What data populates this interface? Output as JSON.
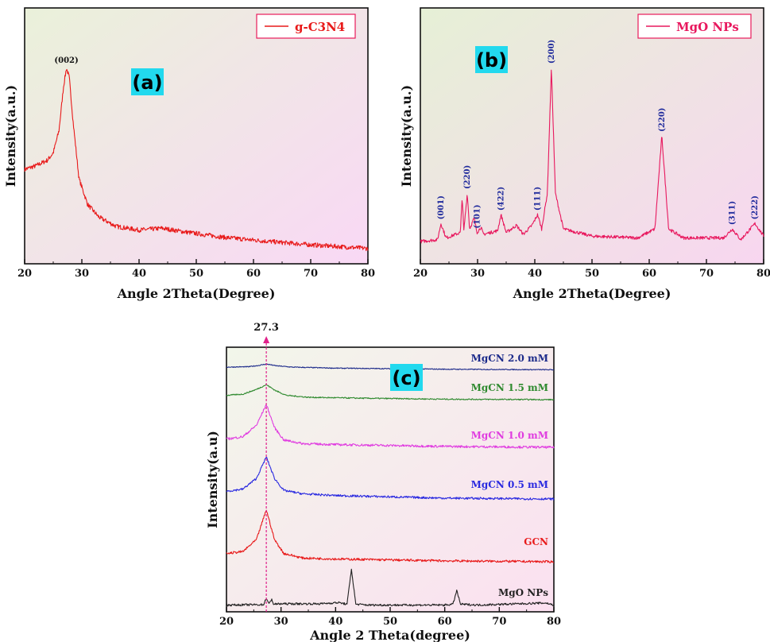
{
  "chart_data": [
    {
      "type": "line",
      "panel_label": "(a)",
      "xlabel": "Angle 2Theta(Degree)",
      "ylabel": "Intensity(a.u.)",
      "xlim": [
        20,
        80
      ],
      "xticks": [
        20,
        30,
        40,
        50,
        60,
        70,
        80
      ],
      "grid": false,
      "legend": "top-right",
      "series": [
        {
          "name": "g-C3N4",
          "color": "#e81a1a",
          "x": [
            20,
            22,
            24,
            25,
            26,
            26.8,
            27.3,
            27.8,
            28.5,
            29.5,
            31,
            33,
            36,
            40,
            44,
            48,
            55,
            62,
            70,
            80
          ],
          "y": [
            0.45,
            0.47,
            0.5,
            0.54,
            0.66,
            0.9,
            1.0,
            0.95,
            0.7,
            0.4,
            0.26,
            0.19,
            0.14,
            0.12,
            0.13,
            0.11,
            0.08,
            0.06,
            0.04,
            0.02
          ]
        }
      ],
      "peaks": [
        {
          "x": 27.3,
          "label": "(002)"
        }
      ]
    },
    {
      "type": "line",
      "panel_label": "(b)",
      "xlabel": "Angle 2Theta(Degree)",
      "ylabel": "Intensity(a.u.)",
      "xlim": [
        20,
        80
      ],
      "xticks": [
        20,
        30,
        40,
        50,
        60,
        70,
        80
      ],
      "grid": false,
      "legend": "top-right",
      "series": [
        {
          "name": "MgO NPs",
          "color": "#e8185e",
          "x": [
            20,
            23,
            23.6,
            24.5,
            27,
            27.3,
            27.6,
            28.2,
            28.6,
            29.4,
            29.9,
            30.6,
            31,
            33.5,
            34.1,
            35,
            36.8,
            38,
            39.5,
            40.5,
            41.2,
            42.2,
            42.9,
            43.6,
            45,
            50,
            58,
            61,
            62.2,
            63.4,
            66,
            73,
            74.5,
            76,
            78.5,
            80
          ],
          "y": [
            0.03,
            0.04,
            0.13,
            0.05,
            0.08,
            0.28,
            0.09,
            0.3,
            0.1,
            0.16,
            0.08,
            0.11,
            0.07,
            0.09,
            0.18,
            0.08,
            0.12,
            0.07,
            0.12,
            0.18,
            0.1,
            0.3,
            1.0,
            0.3,
            0.1,
            0.06,
            0.05,
            0.1,
            0.62,
            0.1,
            0.05,
            0.05,
            0.1,
            0.04,
            0.13,
            0.06
          ]
        }
      ],
      "peaks": [
        {
          "x": 23.6,
          "label": "(001)"
        },
        {
          "x": 28.2,
          "label": "(220)"
        },
        {
          "x": 29.9,
          "label": "(101)"
        },
        {
          "x": 34.1,
          "label": "(422)"
        },
        {
          "x": 40.5,
          "label": "(111)"
        },
        {
          "x": 42.9,
          "label": "(200)"
        },
        {
          "x": 62.2,
          "label": "(220)"
        },
        {
          "x": 74.5,
          "label": "(311)"
        },
        {
          "x": 78.5,
          "label": "(222)"
        }
      ]
    },
    {
      "type": "line",
      "panel_label": "(c)",
      "xlabel": "Angle 2 Theta(degree)",
      "ylabel": "Intensity(a.u)",
      "xlim": [
        20,
        80
      ],
      "xticks": [
        20,
        30,
        40,
        50,
        60,
        70,
        80
      ],
      "grid": false,
      "marker_line": {
        "x": 27.3,
        "label": "27.3"
      },
      "series": [
        {
          "name": "MgCN 2.0 mM",
          "color": "#1c2a8a",
          "x": [
            20,
            24,
            26,
            27.3,
            29,
            32,
            40,
            60,
            80
          ],
          "y": [
            0.2,
            0.22,
            0.3,
            0.38,
            0.28,
            0.2,
            0.14,
            0.08,
            0.05
          ]
        },
        {
          "name": "MgCN 1.5 mM",
          "color": "#2f8a2f",
          "x": [
            20,
            23,
            25.5,
            27.3,
            29,
            31,
            35,
            45,
            60,
            80
          ],
          "y": [
            0.2,
            0.25,
            0.45,
            0.65,
            0.4,
            0.2,
            0.12,
            0.08,
            0.04,
            0.02
          ]
        },
        {
          "name": "MgCN 1.0 mM",
          "color": "#e03ce0",
          "x": [
            20,
            23,
            25.5,
            27.3,
            28.8,
            30.5,
            34,
            40,
            50,
            60,
            80
          ],
          "y": [
            0.2,
            0.25,
            0.5,
            0.95,
            0.45,
            0.18,
            0.1,
            0.08,
            0.06,
            0.04,
            0.02
          ]
        },
        {
          "name": "MgCN 0.5 mM",
          "color": "#2a2ae0",
          "x": [
            20,
            23,
            25.5,
            27.3,
            28.8,
            30.5,
            34,
            40,
            50,
            60,
            80
          ],
          "y": [
            0.2,
            0.25,
            0.5,
            1.0,
            0.5,
            0.22,
            0.14,
            0.1,
            0.07,
            0.04,
            0.02
          ]
        },
        {
          "name": "GCN",
          "color": "#e81a1a",
          "x": [
            20,
            23,
            25.5,
            27.3,
            28.8,
            30.5,
            34,
            40,
            50,
            60,
            80
          ],
          "y": [
            0.2,
            0.24,
            0.5,
            1.15,
            0.5,
            0.2,
            0.1,
            0.08,
            0.06,
            0.04,
            0.02
          ]
        },
        {
          "name": "MgO NPs",
          "color": "#222222",
          "x": [
            20,
            26.8,
            27.3,
            27.8,
            28.3,
            28.6,
            30,
            37,
            40.5,
            42.1,
            42.9,
            43.7,
            46,
            60,
            61.5,
            62.2,
            62.9,
            66,
            78.5,
            80
          ],
          "y": [
            0.03,
            0.04,
            0.2,
            0.05,
            0.18,
            0.05,
            0.06,
            0.06,
            0.09,
            0.05,
            0.9,
            0.05,
            0.03,
            0.03,
            0.05,
            0.38,
            0.05,
            0.03,
            0.08,
            0.03
          ]
        }
      ]
    }
  ]
}
